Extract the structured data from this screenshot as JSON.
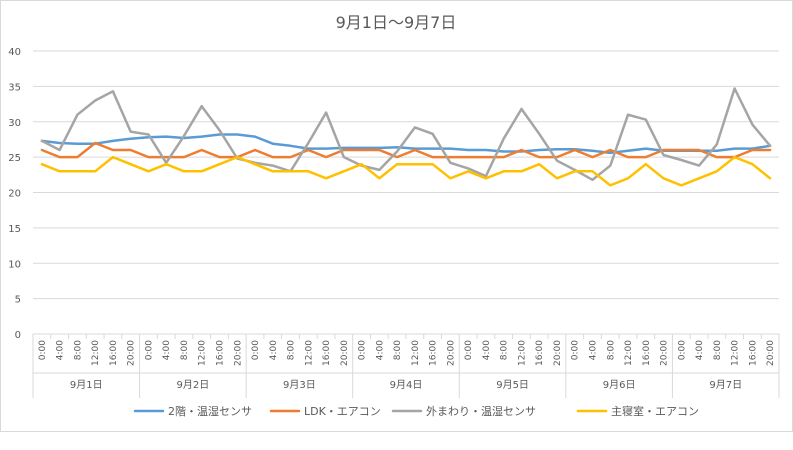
{
  "chart_data": {
    "type": "line",
    "title": "9月1日～9月7日",
    "ylim": [
      0,
      40
    ],
    "yticks": [
      0,
      5,
      10,
      15,
      20,
      25,
      30,
      35,
      40
    ],
    "grid": true,
    "legend_position": "bottom",
    "days": [
      "9月1日",
      "9月2日",
      "9月3日",
      "9月4日",
      "9月5日",
      "9月6日",
      "9月7日"
    ],
    "hours": [
      "0:00",
      "4:00",
      "8:00",
      "12:00",
      "16:00",
      "20:00"
    ],
    "series": [
      {
        "name": "2階・温湿センサ",
        "color": "#5b9bd5",
        "values": [
          27.3,
          27.0,
          26.9,
          26.9,
          27.3,
          27.6,
          27.8,
          27.9,
          27.7,
          27.9,
          28.2,
          28.2,
          27.9,
          26.9,
          26.6,
          26.2,
          26.2,
          26.3,
          26.3,
          26.3,
          26.4,
          26.2,
          26.2,
          26.2,
          26.0,
          26.0,
          25.8,
          25.8,
          26.0,
          26.1,
          26.1,
          25.9,
          25.6,
          25.9,
          26.2,
          25.9,
          25.9,
          25.9,
          25.9,
          26.2,
          26.2,
          26.6
        ]
      },
      {
        "name": "LDK・エアコン",
        "color": "#ed7d31",
        "values": [
          26.0,
          25.0,
          25.0,
          27.0,
          26.0,
          26.0,
          25.0,
          25.0,
          25.0,
          26.0,
          25.0,
          25.0,
          26.0,
          25.0,
          25.0,
          26.0,
          25.0,
          26.0,
          26.0,
          26.0,
          25.0,
          26.0,
          25.0,
          25.0,
          25.0,
          25.0,
          25.0,
          26.0,
          25.0,
          25.0,
          26.0,
          25.0,
          26.0,
          25.0,
          25.0,
          26.0,
          26.0,
          26.0,
          25.0,
          25.0,
          26.0,
          26.0
        ]
      },
      {
        "name": "外まわり・温湿センサ",
        "color": "#a5a5a5",
        "values": [
          27.3,
          26.0,
          31.0,
          33.0,
          34.3,
          28.6,
          28.2,
          24.2,
          28.0,
          32.2,
          28.8,
          24.8,
          24.2,
          23.8,
          23.0,
          27.0,
          31.3,
          25.0,
          23.8,
          23.2,
          25.8,
          29.2,
          28.3,
          24.2,
          23.4,
          22.3,
          27.6,
          31.8,
          28.3,
          24.5,
          23.2,
          21.8,
          23.8,
          31.0,
          30.3,
          25.3,
          24.6,
          23.8,
          26.8,
          34.7,
          29.6,
          26.6
        ]
      },
      {
        "name": "主寝室・エアコン",
        "color": "#ffc000",
        "values": [
          24.0,
          23.0,
          23.0,
          23.0,
          25.0,
          24.0,
          23.0,
          24.0,
          23.0,
          23.0,
          24.0,
          25.0,
          24.0,
          23.0,
          23.0,
          23.0,
          22.0,
          23.0,
          24.0,
          22.0,
          24.0,
          24.0,
          24.0,
          22.0,
          23.0,
          22.0,
          23.0,
          23.0,
          24.0,
          22.0,
          23.0,
          23.0,
          21.0,
          22.0,
          24.0,
          22.0,
          21.0,
          22.0,
          23.0,
          25.0,
          24.0,
          22.0
        ]
      }
    ]
  }
}
